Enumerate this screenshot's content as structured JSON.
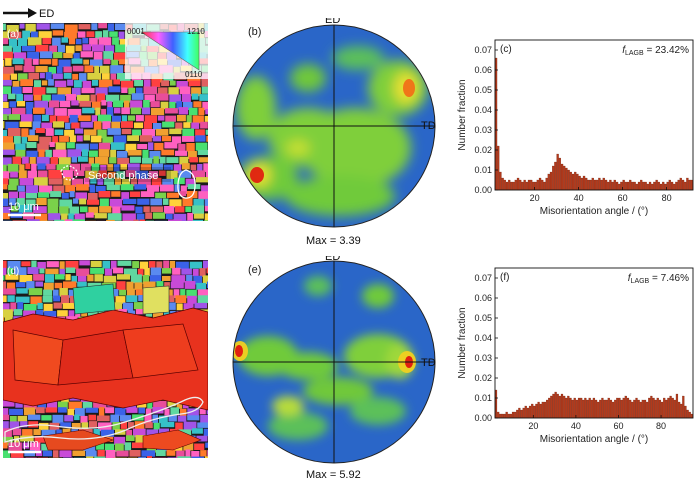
{
  "ed_arrow_label": "ED",
  "panels": {
    "a": {
      "tag": "(a)",
      "scale_bar": "10 μm",
      "annotation": "Second phase",
      "ipf_key": {
        "corner_0001": "0001",
        "corner_1210": "1210",
        "corner_0110": "0110"
      }
    },
    "b": {
      "tag": "(b)",
      "top": "ED",
      "right": "TD",
      "max": "Max = 3.39"
    },
    "d": {
      "tag": "(d)",
      "scale_bar": "10 μm"
    },
    "e": {
      "tag": "(e)",
      "top": "ED",
      "right": "TD",
      "max": "Max = 5.92"
    }
  },
  "chart_data": [
    {
      "type": "bar",
      "panel": "(c)",
      "annotation_symbol": "f",
      "annotation_subscript": "LAGB",
      "annotation_value": " = 23.42%",
      "xlabel": "Misorientation angle / (°)",
      "ylabel": "Number fraction",
      "xlim": [
        2,
        92
      ],
      "ylim": [
        0,
        0.075
      ],
      "xticks": [
        20,
        40,
        60,
        80
      ],
      "yticks": [
        0.0,
        0.01,
        0.02,
        0.03,
        0.04,
        0.05,
        0.06,
        0.07
      ],
      "x_start": 2,
      "bin_width": 1,
      "color": "#b23a1c",
      "values": [
        0.066,
        0.022,
        0.009,
        0.006,
        0.005,
        0.004,
        0.005,
        0.004,
        0.004,
        0.005,
        0.006,
        0.005,
        0.004,
        0.005,
        0.004,
        0.005,
        0.005,
        0.004,
        0.004,
        0.005,
        0.006,
        0.005,
        0.004,
        0.006,
        0.008,
        0.009,
        0.012,
        0.014,
        0.018,
        0.016,
        0.013,
        0.012,
        0.011,
        0.01,
        0.009,
        0.008,
        0.009,
        0.008,
        0.007,
        0.006,
        0.007,
        0.006,
        0.005,
        0.005,
        0.006,
        0.005,
        0.005,
        0.006,
        0.005,
        0.006,
        0.005,
        0.004,
        0.005,
        0.004,
        0.005,
        0.004,
        0.003,
        0.004,
        0.005,
        0.004,
        0.004,
        0.005,
        0.004,
        0.004,
        0.003,
        0.004,
        0.005,
        0.004,
        0.004,
        0.003,
        0.004,
        0.003,
        0.004,
        0.005,
        0.004,
        0.003,
        0.004,
        0.003,
        0.004,
        0.005,
        0.004,
        0.003,
        0.004,
        0.005,
        0.006,
        0.005,
        0.004,
        0.006,
        0.005,
        0.005
      ]
    },
    {
      "type": "bar",
      "panel": "(f)",
      "annotation_symbol": "f",
      "annotation_subscript": "LAGB",
      "annotation_value": " = 7.46%",
      "xlabel": "Misorientation angle / (°)",
      "ylabel": "Number fraction",
      "xlim": [
        2,
        95
      ],
      "ylim": [
        0,
        0.075
      ],
      "xticks": [
        20,
        40,
        60,
        80
      ],
      "yticks": [
        0.0,
        0.01,
        0.02,
        0.03,
        0.04,
        0.05,
        0.06,
        0.07
      ],
      "x_start": 2,
      "bin_width": 1,
      "color": "#b23a1c",
      "values": [
        0.014,
        0.003,
        0.002,
        0.002,
        0.002,
        0.003,
        0.002,
        0.002,
        0.003,
        0.003,
        0.004,
        0.005,
        0.004,
        0.005,
        0.006,
        0.005,
        0.006,
        0.007,
        0.006,
        0.007,
        0.008,
        0.007,
        0.008,
        0.008,
        0.009,
        0.01,
        0.011,
        0.012,
        0.013,
        0.012,
        0.011,
        0.012,
        0.011,
        0.01,
        0.011,
        0.01,
        0.009,
        0.01,
        0.009,
        0.01,
        0.01,
        0.009,
        0.01,
        0.009,
        0.01,
        0.009,
        0.01,
        0.009,
        0.008,
        0.009,
        0.01,
        0.009,
        0.009,
        0.01,
        0.009,
        0.008,
        0.009,
        0.01,
        0.01,
        0.009,
        0.01,
        0.011,
        0.01,
        0.009,
        0.008,
        0.009,
        0.01,
        0.009,
        0.008,
        0.009,
        0.009,
        0.008,
        0.01,
        0.011,
        0.01,
        0.009,
        0.01,
        0.009,
        0.008,
        0.01,
        0.009,
        0.01,
        0.011,
        0.01,
        0.009,
        0.012,
        0.008,
        0.007,
        0.011,
        0.006,
        0.004,
        0.003,
        0.002
      ]
    }
  ]
}
